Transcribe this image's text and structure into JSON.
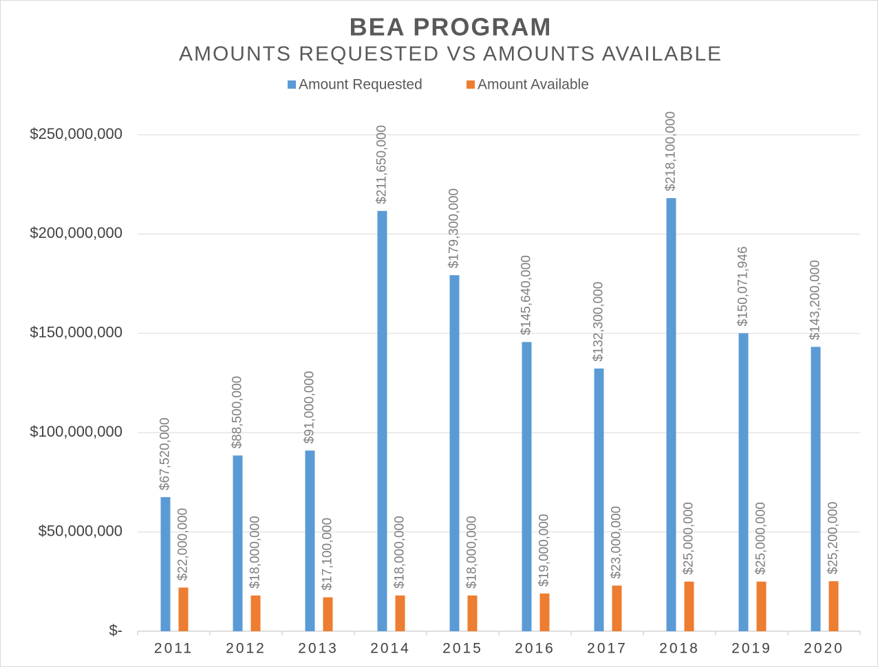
{
  "chart_data": {
    "type": "bar",
    "title": "BEA PROGRAM",
    "subtitle": "AMOUNTS REQUESTED VS AMOUNTS AVAILABLE",
    "categories": [
      "2011",
      "2012",
      "2013",
      "2014",
      "2015",
      "2016",
      "2017",
      "2018",
      "2019",
      "2020"
    ],
    "series": [
      {
        "name": "Amount Requested",
        "color": "#5b9bd5",
        "values": [
          67520000,
          88500000,
          91000000,
          211650000,
          179300000,
          145640000,
          132300000,
          218100000,
          150071946,
          143200000
        ],
        "value_labels": [
          "$67,520,000",
          "$88,500,000",
          "$91,000,000",
          "$211,650,000",
          "$179,300,000",
          "$145,640,000",
          "$132,300,000",
          "$218,100,000",
          "$150,071,946",
          "$143,200,000"
        ]
      },
      {
        "name": "Amount Available",
        "color": "#ed7d31",
        "values": [
          22000000,
          18000000,
          17100000,
          18000000,
          18000000,
          19000000,
          23000000,
          25000000,
          25000000,
          25200000
        ],
        "value_labels": [
          "$22,000,000",
          "$18,000,000",
          "$17,100,000",
          "$18,000,000",
          "$18,000,000",
          "$19,000,000",
          "$23,000,000",
          "$25,000,000",
          "$25,000,000",
          "$25,200,000"
        ]
      }
    ],
    "ylim": [
      0,
      250000000
    ],
    "yticks": [
      {
        "value": 0,
        "label": "$-"
      },
      {
        "value": 50000000,
        "label": "$50,000,000"
      },
      {
        "value": 100000000,
        "label": "$100,000,000"
      },
      {
        "value": 150000000,
        "label": "$150,000,000"
      },
      {
        "value": 200000000,
        "label": "$200,000,000"
      },
      {
        "value": 250000000,
        "label": "$250,000,000"
      }
    ],
    "grid": true,
    "legend": "top"
  }
}
